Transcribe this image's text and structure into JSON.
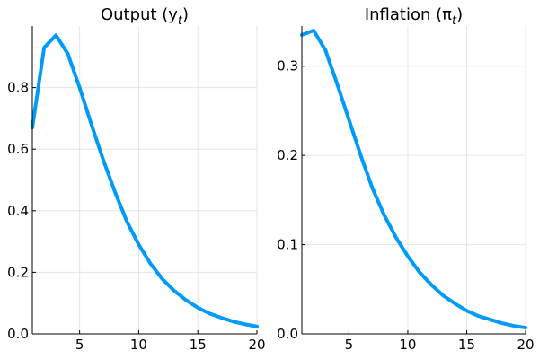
{
  "chart_data": [
    {
      "type": "line",
      "title": "Output (y",
      "title_subscript": "t",
      "title_close": ")",
      "xlabel": "",
      "ylabel": "",
      "xlim": [
        1,
        20
      ],
      "ylim": [
        0,
        1.0
      ],
      "xticks": [
        5,
        10,
        15,
        20
      ],
      "xtick_labels": [
        "5",
        "10",
        "15",
        "20"
      ],
      "yticks": [
        0.0,
        0.2,
        0.4,
        0.6,
        0.8
      ],
      "ytick_labels": [
        "0.0",
        "0.2",
        "0.4",
        "0.6",
        "0.8"
      ],
      "grid": true,
      "legend": "none",
      "color": "#009af9",
      "series": [
        {
          "x": [
            1,
            2,
            3,
            4,
            5,
            6,
            7,
            8,
            9,
            10,
            11,
            12,
            13,
            14,
            15,
            16,
            17,
            18,
            19,
            20
          ],
          "values": [
            0.67,
            0.93,
            0.97,
            0.91,
            0.8,
            0.68,
            0.565,
            0.46,
            0.365,
            0.29,
            0.228,
            0.178,
            0.14,
            0.11,
            0.085,
            0.066,
            0.052,
            0.04,
            0.031,
            0.024
          ]
        }
      ]
    },
    {
      "type": "line",
      "title": "Inflation (π",
      "title_subscript": "t",
      "title_close": ")",
      "xlabel": "",
      "ylabel": "",
      "xlim": [
        1,
        20
      ],
      "ylim": [
        0,
        0.345
      ],
      "xticks": [
        5,
        10,
        15,
        20
      ],
      "xtick_labels": [
        "5",
        "10",
        "15",
        "20"
      ],
      "yticks": [
        0.0,
        0.1,
        0.2,
        0.3
      ],
      "ytick_labels": [
        "0.0",
        "0.1",
        "0.2",
        "0.3"
      ],
      "grid": true,
      "legend": "none",
      "color": "#009af9",
      "series": [
        {
          "x": [
            1,
            2,
            3,
            4,
            5,
            6,
            7,
            8,
            9,
            10,
            11,
            12,
            13,
            14,
            15,
            16,
            17,
            18,
            19,
            20
          ],
          "values": [
            0.335,
            0.34,
            0.318,
            0.28,
            0.24,
            0.2,
            0.163,
            0.133,
            0.108,
            0.087,
            0.069,
            0.055,
            0.043,
            0.034,
            0.026,
            0.02,
            0.016,
            0.012,
            0.009,
            0.007
          ]
        }
      ]
    }
  ]
}
